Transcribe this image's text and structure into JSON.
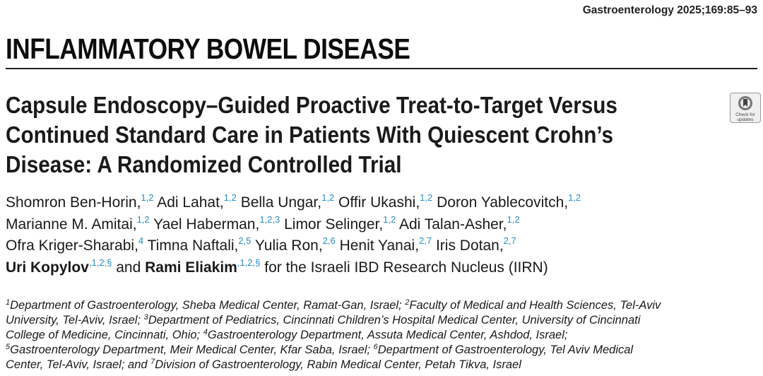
{
  "journal_ref": "Gastroenterology 2025;169:85–93",
  "section": "INFLAMMATORY BOWEL DISEASE",
  "title_lines": [
    "Capsule Endoscopy–Guided Proactive Treat-to-Target Versus",
    "Continued Standard Care in Patients With Quiescent Crohn’s",
    "Disease: A Randomized Controlled Trial"
  ],
  "badge": {
    "line1": "Check for",
    "line2": "updates"
  },
  "authors": [
    [
      {
        "name": "Shomron Ben-Horin,",
        "sup": "1,2"
      },
      {
        "name": "Adi Lahat,",
        "sup": "1,2"
      },
      {
        "name": "Bella Ungar,",
        "sup": "1,2"
      },
      {
        "name": "Offir Ukashi,",
        "sup": "1,2"
      },
      {
        "name": "Doron Yablecovitch,",
        "sup": "1,2"
      }
    ],
    [
      {
        "name": "Marianne M. Amitai,",
        "sup": "1,2"
      },
      {
        "name": "Yael Haberman,",
        "sup": "1,2,3"
      },
      {
        "name": "Limor Selinger,",
        "sup": "1,2"
      },
      {
        "name": "Adi Talan-Asher,",
        "sup": "1,2"
      }
    ],
    [
      {
        "name": "Ofra Kriger-Sharabi,",
        "sup": "4"
      },
      {
        "name": "Timna Naftali,",
        "sup": "2,5"
      },
      {
        "name": "Yulia Ron,",
        "sup": "2,6"
      },
      {
        "name": "Henit Yanai,",
        "sup": "2,7"
      },
      {
        "name": "Iris Dotan,",
        "sup": "2,7"
      }
    ]
  ],
  "authors_last": {
    "a1": "Uri Kopylov",
    "a1_sup": ",1,2,§",
    "and": "and",
    "a2": "Rami Eliakim",
    "a2_sup": ",1,2,§",
    "group": "for the Israeli IBD Research Nucleus (IIRN)"
  },
  "affiliations": [
    [
      {
        "sup": "1",
        "text": "Department of Gastroenterology, Sheba Medical Center, Ramat-Gan, Israel; "
      },
      {
        "sup": "2",
        "text": "Faculty of Medical and Health Sciences, Tel-Aviv"
      }
    ],
    [
      {
        "sup": "",
        "text": "University, Tel-Aviv, Israel; "
      },
      {
        "sup": "3",
        "text": "Department of Pediatrics, Cincinnati Children’s Hospital Medical Center, University of Cincinnati"
      }
    ],
    [
      {
        "sup": "",
        "text": "College of Medicine, Cincinnati, Ohio; "
      },
      {
        "sup": "4",
        "text": "Gastroenterology Department, Assuta Medical Center, Ashdod, Israel;"
      }
    ],
    [
      {
        "sup": "5",
        "text": "Gastroenterology Department, Meir Medical Center, Kfar Saba, Israel; "
      },
      {
        "sup": "6",
        "text": "Department of Gastroenterology, Tel Aviv Medical"
      }
    ],
    [
      {
        "sup": "",
        "text": "Center, Tel-Aviv, Israel; and "
      },
      {
        "sup": "7",
        "text": "Division of Gastroenterology, Rabin Medical Center, Petah Tikva, Israel"
      }
    ]
  ]
}
